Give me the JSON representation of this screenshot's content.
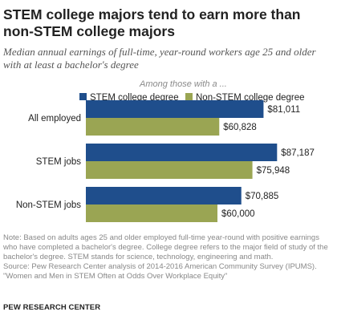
{
  "title": "STEM college majors tend to earn more than non-STEM college majors",
  "subtitle": "Median annual earnings of full-time, year-round workers age 25 and older with at least a bachelor's degree",
  "legend_heading": "Among those with a ...",
  "colors": {
    "stem": "#1f4e8c",
    "non_stem": "#9aa553"
  },
  "chart_data": {
    "type": "bar",
    "orientation": "horizontal",
    "categories": [
      "All employed",
      "STEM jobs",
      "Non-STEM jobs"
    ],
    "series": [
      {
        "name": "STEM college degree",
        "values": [
          81011,
          87187,
          70885
        ],
        "labels": [
          "$81,011",
          "$87,187",
          "$70,885"
        ]
      },
      {
        "name": "Non-STEM college degree",
        "values": [
          60828,
          75948,
          60000
        ],
        "labels": [
          "$60,828",
          "$75,948",
          "$60,000"
        ]
      }
    ],
    "xlim": [
      0,
      90000
    ],
    "legend_position": "top",
    "grid": false
  },
  "note": {
    "text": "Note: Based on adults ages 25 and older employed full-time year-round with positive earnings who have completed a bachelor's degree. College degree refers to the major field of study of the bachelor's degree. STEM stands for science, technology, engineering and math.",
    "source": "Source: Pew Research Center analysis of 2014-2016 American Community Survey (IPUMS).",
    "report": "\"Women and Men in STEM Often at Odds Over Workplace Equity\""
  },
  "brand": "PEW RESEARCH CENTER"
}
